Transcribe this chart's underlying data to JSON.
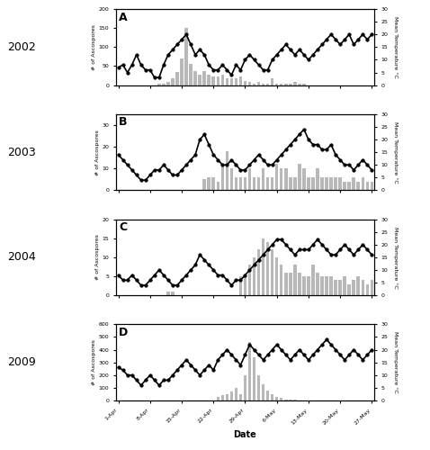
{
  "years": [
    "2002",
    "2003",
    "2004",
    "2009"
  ],
  "labels": [
    "A",
    "B",
    "C",
    "D"
  ],
  "x_tick_labels": [
    "1-Apr",
    "8-Apr",
    "15-Apr",
    "22-Apr",
    "29-Apr",
    "6-May",
    "13-May",
    "20-May",
    "27-May"
  ],
  "x_tick_positions": [
    0,
    7,
    14,
    21,
    28,
    35,
    42,
    49,
    56
  ],
  "xlabel": "Date",
  "ascospores_ylims": [
    200,
    35,
    20,
    600
  ],
  "temp_ylims": [
    30,
    30,
    30,
    30
  ],
  "temp_2002": [
    7,
    8,
    5,
    8,
    12,
    8,
    6,
    6,
    3,
    3,
    8,
    12,
    14,
    16,
    18,
    20,
    16,
    12,
    14,
    12,
    8,
    6,
    6,
    8,
    6,
    4,
    8,
    6,
    10,
    12,
    10,
    8,
    6,
    6,
    10,
    12,
    14,
    16,
    14,
    12,
    14,
    12,
    10,
    12,
    14,
    16,
    18,
    20,
    18,
    16,
    18,
    20,
    16,
    18,
    20,
    18,
    20
  ],
  "bars_2002_pos": [
    9,
    10,
    11,
    12,
    13,
    14,
    15,
    16,
    17,
    18,
    19,
    20,
    21,
    22,
    23,
    24,
    25,
    26,
    27,
    28,
    29,
    30,
    31,
    32,
    33,
    34,
    35,
    36,
    37,
    38,
    39,
    40,
    41
  ],
  "bars_2002_val": [
    4,
    4,
    8,
    18,
    35,
    70,
    150,
    55,
    38,
    28,
    38,
    28,
    22,
    22,
    28,
    18,
    18,
    18,
    22,
    12,
    8,
    4,
    8,
    4,
    4,
    18,
    4,
    4,
    4,
    4,
    8,
    4,
    4
  ],
  "temp_2003": [
    14,
    12,
    10,
    8,
    6,
    4,
    4,
    6,
    8,
    8,
    10,
    8,
    6,
    6,
    8,
    10,
    12,
    14,
    20,
    22,
    18,
    14,
    12,
    10,
    10,
    12,
    10,
    8,
    8,
    10,
    12,
    14,
    12,
    10,
    10,
    12,
    14,
    16,
    18,
    20,
    22,
    24,
    20,
    18,
    18,
    16,
    16,
    18,
    14,
    12,
    10,
    10,
    8,
    10,
    12,
    10,
    8
  ],
  "bars_2003_pos": [
    19,
    20,
    21,
    22,
    23,
    24,
    25,
    26,
    27,
    28,
    29,
    30,
    31,
    32,
    33,
    34,
    35,
    36,
    37,
    38,
    39,
    40,
    41,
    42,
    43,
    44,
    45,
    46,
    47,
    48,
    49,
    50,
    51,
    52,
    53,
    54,
    55,
    56
  ],
  "bars_2003_val": [
    5,
    6,
    6,
    4,
    12,
    18,
    10,
    6,
    6,
    6,
    10,
    6,
    6,
    10,
    6,
    6,
    12,
    10,
    10,
    6,
    6,
    12,
    10,
    6,
    6,
    10,
    6,
    6,
    6,
    6,
    6,
    4,
    4,
    6,
    4,
    6,
    4,
    4
  ],
  "temp_2004": [
    8,
    6,
    6,
    8,
    6,
    4,
    4,
    6,
    8,
    10,
    8,
    6,
    4,
    4,
    6,
    8,
    10,
    12,
    16,
    14,
    12,
    10,
    8,
    8,
    6,
    4,
    6,
    6,
    8,
    10,
    12,
    14,
    16,
    18,
    20,
    22,
    22,
    20,
    18,
    16,
    18,
    18,
    18,
    20,
    22,
    20,
    18,
    16,
    16,
    18,
    20,
    18,
    16,
    18,
    20,
    18,
    16
  ],
  "bars_2004_pos": [
    11,
    12,
    27,
    28,
    29,
    30,
    31,
    32,
    33,
    34,
    35,
    36,
    37,
    38,
    39,
    40,
    41,
    42,
    43,
    44,
    45,
    46,
    47,
    48,
    49,
    50,
    51,
    52,
    53,
    54,
    55,
    56
  ],
  "bars_2004_val": [
    1,
    1,
    5,
    5,
    8,
    10,
    12,
    15,
    14,
    12,
    10,
    8,
    6,
    6,
    8,
    6,
    5,
    5,
    8,
    6,
    5,
    5,
    5,
    4,
    4,
    5,
    3,
    4,
    5,
    4,
    3,
    4
  ],
  "temp_2009": [
    13,
    12,
    10,
    10,
    8,
    6,
    8,
    10,
    8,
    6,
    8,
    8,
    10,
    12,
    14,
    16,
    14,
    12,
    10,
    12,
    14,
    12,
    16,
    18,
    20,
    18,
    16,
    14,
    18,
    22,
    20,
    18,
    16,
    18,
    20,
    22,
    20,
    18,
    16,
    18,
    20,
    18,
    16,
    18,
    20,
    22,
    24,
    22,
    20,
    18,
    16,
    18,
    20,
    18,
    16,
    18,
    20
  ],
  "bars_2009_pos": [
    22,
    23,
    24,
    25,
    26,
    27,
    28,
    29,
    30,
    31,
    32,
    33,
    34,
    35,
    36,
    37,
    38,
    39
  ],
  "bars_2009_val": [
    30,
    40,
    50,
    70,
    100,
    50,
    200,
    460,
    340,
    200,
    130,
    80,
    50,
    30,
    20,
    10,
    10,
    10
  ],
  "bg_color": "#ffffff",
  "line_color": "#000000",
  "bar_color": "#b8b8b8",
  "marker": "o",
  "marker_size": 2.5,
  "line_width": 1.2
}
